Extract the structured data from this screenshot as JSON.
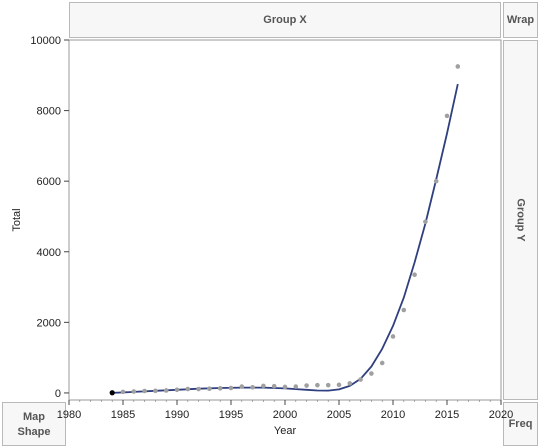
{
  "zones": {
    "group_x": "Group X",
    "wrap": "Wrap",
    "group_y": "Group Y",
    "map_shape_line1": "Map",
    "map_shape_line2": "Shape",
    "freq": "Freq"
  },
  "chart_data": {
    "type": "scatter",
    "xlabel": "Year",
    "ylabel": "Total",
    "xlim": [
      1980,
      2020
    ],
    "ylim": [
      -200,
      10000
    ],
    "x_ticks": [
      1980,
      1985,
      1990,
      1995,
      2000,
      2005,
      2010,
      2015,
      2020
    ],
    "y_ticks": [
      0,
      2000,
      4000,
      6000,
      8000,
      10000
    ],
    "grid": false,
    "colors": {
      "points": "#a0a0a0",
      "highlight_point": "#000000",
      "fit_line": "#2f3f7f"
    },
    "series": [
      {
        "marker": "points",
        "x": [
          1984,
          1985,
          1986,
          1987,
          1988,
          1989,
          1990,
          1991,
          1992,
          1993,
          1994,
          1995,
          1996,
          1997,
          1998,
          1999,
          2000,
          2001,
          2002,
          2003,
          2004,
          2005,
          2006,
          2007,
          2008,
          2009,
          2010,
          2011,
          2012,
          2013,
          2014,
          2015,
          2016
        ],
        "y": [
          5,
          30,
          40,
          55,
          60,
          70,
          90,
          110,
          110,
          120,
          130,
          140,
          180,
          160,
          200,
          190,
          170,
          180,
          210,
          220,
          220,
          230,
          270,
          380,
          550,
          850,
          1600,
          2350,
          3350,
          4850,
          6000,
          7850,
          9250
        ]
      },
      {
        "marker": "smooth-fit",
        "x": [
          1984,
          1986,
          1988,
          1990,
          1992,
          1994,
          1996,
          1998,
          2000,
          2001,
          2002,
          2003,
          2004,
          2005,
          2006,
          2007,
          2008,
          2009,
          2010,
          2011,
          2012,
          2013,
          2014,
          2015,
          2016
        ],
        "y": [
          0,
          30,
          60,
          90,
          120,
          140,
          150,
          150,
          130,
          110,
          90,
          70,
          65,
          100,
          200,
          400,
          750,
          1250,
          1900,
          2700,
          3700,
          4800,
          6050,
          7350,
          8750
        ]
      }
    ],
    "highlighted_point": {
      "x": 1984,
      "y": 5
    }
  }
}
